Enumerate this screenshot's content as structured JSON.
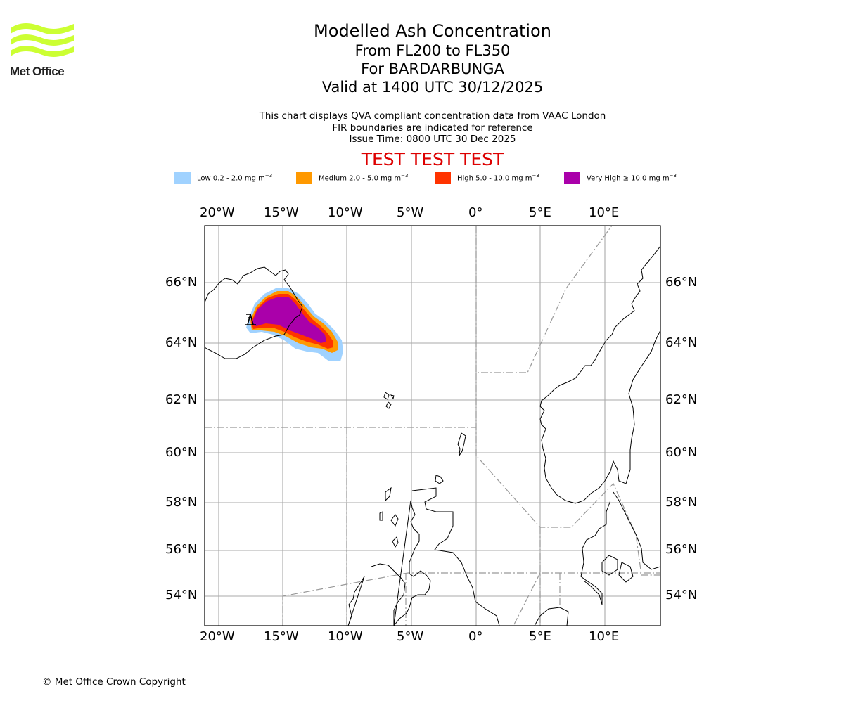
{
  "logo": {
    "text": "Met Office",
    "color": "#ccff33"
  },
  "titles": {
    "main": "Modelled Ash Concentration",
    "levels": "From FL200 to FL350",
    "volcano": "For BARDARBUNGA",
    "valid": "Valid at 1400 UTC 30/12/2025"
  },
  "subtitle": {
    "line1": "This chart displays QVA compliant concentration data from VAAC London",
    "line2": "FIR boundaries are indicated for reference",
    "line3": "Issue Time: 0800 UTC 30 Dec 2025"
  },
  "test_banner": "TEST TEST TEST",
  "legend": [
    {
      "name": "Low",
      "label": "Low 0.2 - 2.0 mg m",
      "exp": "−3",
      "color": "#a0d2ff"
    },
    {
      "name": "Medium",
      "label": "Medium 2.0 - 5.0 mg m",
      "exp": "−3",
      "color": "#ff9900"
    },
    {
      "name": "High",
      "label": "High 5.0 - 10.0 mg m",
      "exp": "−3",
      "color": "#ff3300"
    },
    {
      "name": "Very High",
      "label": "Very High  ≥  10.0 mg m",
      "exp": "−3",
      "color": "#aa00aa"
    }
  ],
  "axes": {
    "lon_labels": [
      "20°W",
      "15°W",
      "10°W",
      "5°W",
      "0°",
      "5°E",
      "10°E"
    ],
    "lat_labels": [
      "66°N",
      "64°N",
      "62°N",
      "60°N",
      "58°N",
      "56°N",
      "54°N"
    ]
  },
  "volcano_marker": {
    "name": "BARDARBUNGA",
    "icon": "volcano-icon"
  },
  "copyright": "© Met Office Crown Copyright"
}
